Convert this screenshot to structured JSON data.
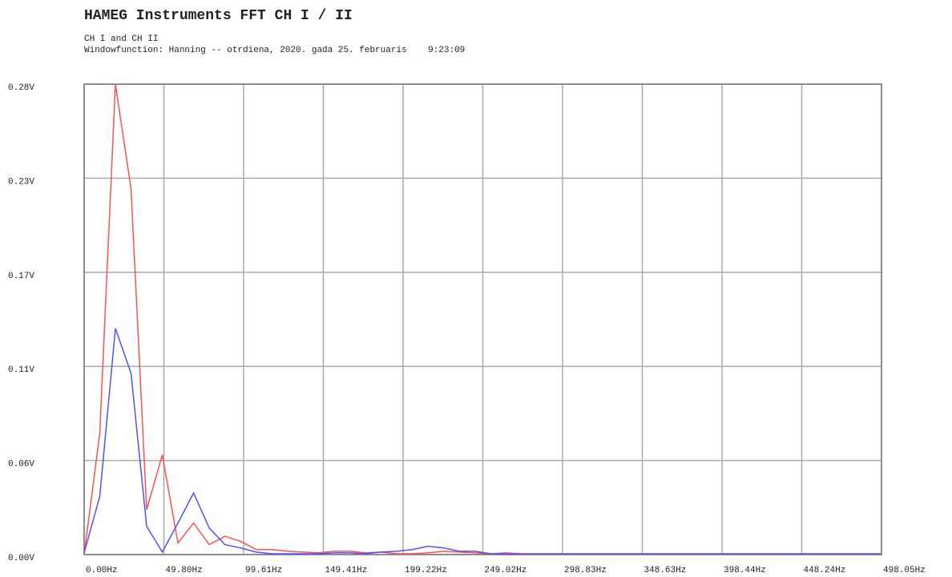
{
  "chart_data": {
    "type": "line",
    "title": "HAMEG Instruments FFT CH I / II",
    "subtitle": [
      "CH I and CH II",
      "Windowfunction: Hanning -- otrdiena, 2020. gada 25. februaris    9:23:09"
    ],
    "x": [
      0,
      9.77,
      19.53,
      29.3,
      39.06,
      48.83,
      58.59,
      68.36,
      78.13,
      87.89,
      97.66,
      107.42,
      117.19,
      126.95,
      136.72,
      146.48,
      156.25,
      166.02,
      175.78,
      185.55,
      195.31,
      205.08,
      214.84,
      224.61,
      234.38,
      244.14,
      253.91,
      263.67,
      273.44,
      283.2,
      292.97,
      302.73,
      312.5,
      322.27,
      332.03,
      341.8,
      351.56,
      361.33,
      371.09,
      380.86,
      390.63,
      400.39,
      410.16,
      419.92,
      429.69,
      439.45,
      449.22,
      458.98,
      468.75,
      478.52,
      488.28,
      498.05
    ],
    "series": [
      {
        "color": "#ff5050",
        "values": [
          0,
          0.073,
          0.283,
          0.22,
          0.027,
          0.06,
          0.007,
          0.019,
          0.006,
          0.011,
          0.008,
          0.003,
          0.003,
          0.002,
          0.0015,
          0.001,
          0.002,
          0.002,
          0.001,
          0.0015,
          0.0005,
          0.0005,
          0.001,
          0.002,
          0.0015,
          0.001,
          0.0005,
          0.001,
          0.0005,
          0.0005,
          0.0005,
          0.0005,
          0.0005,
          0.0005,
          0.0005,
          0.0005,
          0.0005,
          0.0005,
          0.0005,
          0.0005,
          0.0005,
          0.0005,
          0.0005,
          0.0005,
          0.0005,
          0.0005,
          0.0005,
          0.0005,
          0.0005,
          0.0005,
          0.0005,
          0.0005
        ]
      },
      {
        "color": "#5050ff",
        "values": [
          0.001,
          0.035,
          0.136,
          0.109,
          0.017,
          0.0015,
          0.019,
          0.037,
          0.016,
          0.006,
          0.004,
          0.0015,
          0.0005,
          0.0005,
          0.0005,
          0.0005,
          0.001,
          0.001,
          0.0005,
          0.0015,
          0.002,
          0.003,
          0.005,
          0.004,
          0.002,
          0.002,
          0.0005,
          0.0003,
          0.0003,
          0.0003,
          0.0003,
          0.0003,
          0.0003,
          0.0003,
          0.0003,
          0.0003,
          0.0003,
          0.0003,
          0.0003,
          0.0003,
          0.0003,
          0.0003,
          0.0003,
          0.0003,
          0.0003,
          0.0003,
          0.0003,
          0.0003,
          0.0003,
          0.0003,
          0.0003,
          0.0003
        ]
      }
    ],
    "xlim": [
      0,
      498.05
    ],
    "xticks": [
      {
        "value": 0,
        "label": "0.00Hz"
      },
      {
        "value": 49.8,
        "label": "49.80Hz"
      },
      {
        "value": 99.61,
        "label": "99.61Hz"
      },
      {
        "value": 149.41,
        "label": "149.41Hz"
      },
      {
        "value": 199.22,
        "label": "199.22Hz"
      },
      {
        "value": 249.02,
        "label": "249.02Hz"
      },
      {
        "value": 298.83,
        "label": "298.83Hz"
      },
      {
        "value": 348.63,
        "label": "348.63Hz"
      },
      {
        "value": 398.44,
        "label": "398.44Hz"
      },
      {
        "value": 448.24,
        "label": "448.24Hz"
      },
      {
        "value": 498.05,
        "label": "498.05Hz"
      }
    ],
    "ylim": [
      0,
      0.283
    ],
    "yticks": [
      {
        "value": 0,
        "label": "0.00V"
      },
      {
        "value": 0.0566,
        "label": "0.06V"
      },
      {
        "value": 0.1132,
        "label": "0.11V"
      },
      {
        "value": 0.1698,
        "label": "0.17V"
      },
      {
        "value": 0.2264,
        "label": "0.23V"
      },
      {
        "value": 0.283,
        "label": "0.28V"
      }
    ],
    "grid": true
  }
}
